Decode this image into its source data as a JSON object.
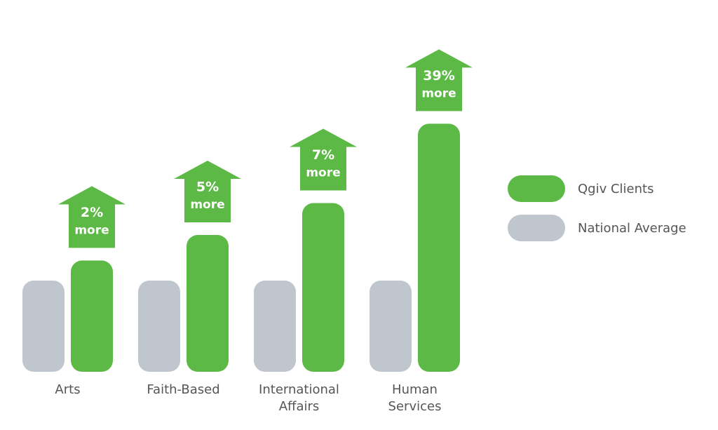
{
  "chart_data": {
    "type": "bar",
    "categories": [
      "Arts",
      "Faith-Based",
      "International Affairs",
      "Human Services"
    ],
    "series": [
      {
        "name": "National Average",
        "color": "#c0c6ce",
        "values": [
          100,
          100,
          100,
          100
        ]
      },
      {
        "name": "Qgiv Clients",
        "color": "#5cb946",
        "values": [
          122,
          150,
          185,
          272
        ]
      }
    ],
    "annotations": {
      "values": [
        2,
        5,
        7,
        39
      ],
      "value_labels": [
        "2%",
        "5%",
        "7%",
        "39%"
      ],
      "text": "more"
    },
    "legend": "right"
  }
}
